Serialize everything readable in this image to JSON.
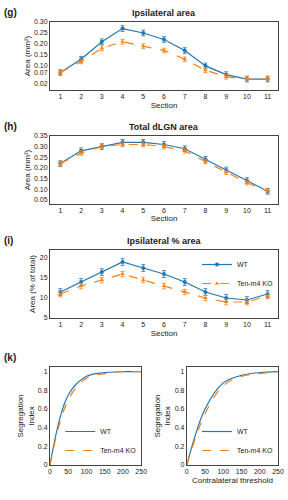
{
  "chart_data": [
    {
      "type": "line",
      "title": "Ipsilateral area",
      "annotations": [
        "(g)"
      ],
      "xlabel": "Section",
      "ylabel": "Area (mm²)",
      "x": [
        1,
        2,
        3,
        4,
        5,
        6,
        7,
        8,
        9,
        10,
        11
      ],
      "series": [
        {
          "name": "WT",
          "line_style": "solid",
          "marker": "circle",
          "values": [
            0.07,
            0.13,
            0.21,
            0.27,
            0.25,
            0.22,
            0.17,
            0.1,
            0.06,
            0.04,
            0.04
          ],
          "errors": [
            0.013,
            0.013,
            0.013,
            0.013,
            0.013,
            0.013,
            0.013,
            0.013,
            0.013,
            0.013,
            0.013
          ]
        },
        {
          "name": "Ten-m4 KO",
          "line_style": "dashed",
          "marker": "triangle-up",
          "values": [
            0.07,
            0.12,
            0.18,
            0.21,
            0.19,
            0.17,
            0.13,
            0.08,
            0.05,
            0.04,
            0.04
          ],
          "errors": [
            0.0104,
            0.0104,
            0.0104,
            0.0104,
            0.0104,
            0.0104,
            0.0104,
            0.0104,
            0.0104,
            0.0104,
            0.0104
          ]
        }
      ],
      "xlim": [
        0.5,
        11.5
      ],
      "xticks": [
        1,
        2,
        3,
        4,
        5,
        6,
        7,
        8,
        9,
        10,
        11
      ],
      "ylim": [
        -0.01,
        0.3
      ],
      "yticks": [
        0.02,
        0.07,
        {
          "value": 0.1,
          "label": "0.10"
        },
        0.15,
        {
          "value": 0.2,
          "label": "0.20"
        },
        0.25,
        {
          "value": 0.3,
          "label": "0.30"
        }
      ],
      "grid": false
    },
    {
      "type": "line",
      "title": "Total dLGN area",
      "annotations": [
        "(h)"
      ],
      "xlabel": "Section",
      "ylabel": "Area (mm²)",
      "x": [
        1,
        2,
        3,
        4,
        5,
        6,
        7,
        8,
        9,
        10,
        11
      ],
      "series": [
        {
          "name": "WT",
          "line_style": "solid",
          "marker": "circle",
          "values": [
            0.22,
            0.28,
            0.3,
            0.32,
            0.32,
            0.31,
            0.29,
            0.24,
            0.19,
            0.14,
            0.09
          ],
          "errors": [
            0.0135,
            0.0135,
            0.0135,
            0.0135,
            0.0135,
            0.0135,
            0.0135,
            0.0135,
            0.0135,
            0.0135,
            0.0135
          ]
        },
        {
          "name": "Ten-m4 KO",
          "line_style": "dashed",
          "marker": "triangle-up",
          "values": [
            0.22,
            0.27,
            0.3,
            0.31,
            0.31,
            0.3,
            0.28,
            0.23,
            0.18,
            0.13,
            0.09
          ],
          "errors": [
            0.0108,
            0.0108,
            0.0108,
            0.0108,
            0.0108,
            0.0108,
            0.0108,
            0.0108,
            0.0108,
            0.0108,
            0.0108
          ]
        }
      ],
      "xlim": [
        0.5,
        11.5
      ],
      "xticks": [
        1,
        2,
        3,
        4,
        5,
        6,
        7,
        8,
        9,
        10,
        11
      ],
      "ylim": [
        0.03,
        0.35
      ],
      "yticks": [
        0.05,
        {
          "value": 0.1,
          "label": "0.10"
        },
        0.15,
        {
          "value": 0.2,
          "label": "0.20"
        },
        0.25,
        {
          "value": 0.3,
          "label": "0.30"
        },
        0.35
      ],
      "grid": false
    },
    {
      "type": "line",
      "title": "Ipsilateral % area",
      "annotations": [
        "(i)"
      ],
      "xlabel": "Section",
      "ylabel": "Area (% of total)",
      "x": [
        1,
        2,
        3,
        4,
        5,
        6,
        7,
        8,
        9,
        10,
        11
      ],
      "series": [
        {
          "name": "WT",
          "line_style": "solid",
          "marker": "circle",
          "values": [
            11.5,
            14.0,
            16.5,
            19.0,
            17.5,
            16.0,
            14.0,
            11.5,
            10.0,
            9.5,
            11.0
          ],
          "errors": [
            0.85,
            0.85,
            0.85,
            0.85,
            0.85,
            0.85,
            0.85,
            0.85,
            0.85,
            0.85,
            0.85
          ]
        },
        {
          "name": "Ten-m4 KO",
          "line_style": "dashed",
          "marker": "triangle-up",
          "values": [
            11.0,
            13.0,
            14.5,
            16.0,
            14.5,
            13.0,
            11.5,
            10.0,
            9.0,
            9.0,
            10.5
          ],
          "errors": [
            0.68,
            0.68,
            0.68,
            0.68,
            0.68,
            0.68,
            0.68,
            0.68,
            0.68,
            0.68,
            0.68
          ]
        }
      ],
      "xlim": [
        0.5,
        11.5
      ],
      "xticks": [
        1,
        2,
        3,
        4,
        5,
        6,
        7,
        8,
        9,
        10,
        11
      ],
      "ylim": [
        5,
        22
      ],
      "yticks": [
        5,
        10,
        15,
        20
      ],
      "grid": false,
      "legend": "upper right"
    },
    {
      "type": "line",
      "annotations": [
        "(k)"
      ],
      "ylabel": "Segregation\nIndex",
      "x": [
        0,
        50,
        100,
        150,
        200,
        250
      ],
      "series": [
        {
          "name": "WT",
          "line_style": "solid",
          "values": [
            0.0,
            0.75,
            0.95,
            0.99,
            1.0,
            1.0
          ]
        },
        {
          "name": "Ten-m4 KO",
          "line_style": "dashed",
          "values": [
            0.0,
            0.7,
            0.93,
            0.98,
            1.0,
            1.0
          ]
        }
      ],
      "xlim": [
        0,
        250
      ],
      "xticks": [
        0,
        50,
        100,
        150,
        200,
        250
      ],
      "ylim": [
        0,
        1.05
      ],
      "yticks": [
        0,
        0.2,
        0.4,
        0.6,
        0.8,
        1
      ],
      "grid": false,
      "legend": "lower right"
    },
    {
      "type": "line",
      "xlabel": "Contralateral threshold",
      "ylabel": "Segregation\nIndex",
      "x": [
        0,
        50,
        100,
        150,
        200,
        250
      ],
      "series": [
        {
          "name": "WT",
          "line_style": "solid",
          "values": [
            0.0,
            0.6,
            0.88,
            0.96,
            0.99,
            1.0
          ]
        },
        {
          "name": "Ten-m4 KO",
          "line_style": "dashed",
          "values": [
            0.0,
            0.55,
            0.85,
            0.95,
            0.98,
            1.0
          ]
        }
      ],
      "xlim": [
        0,
        250
      ],
      "xticks": [
        0,
        50,
        100,
        150,
        200,
        250
      ],
      "ylim": [
        0,
        1.05
      ],
      "yticks": [
        0,
        0.2,
        0.4,
        0.6,
        0.8,
        1
      ],
      "grid": false,
      "legend": "lower right"
    }
  ]
}
